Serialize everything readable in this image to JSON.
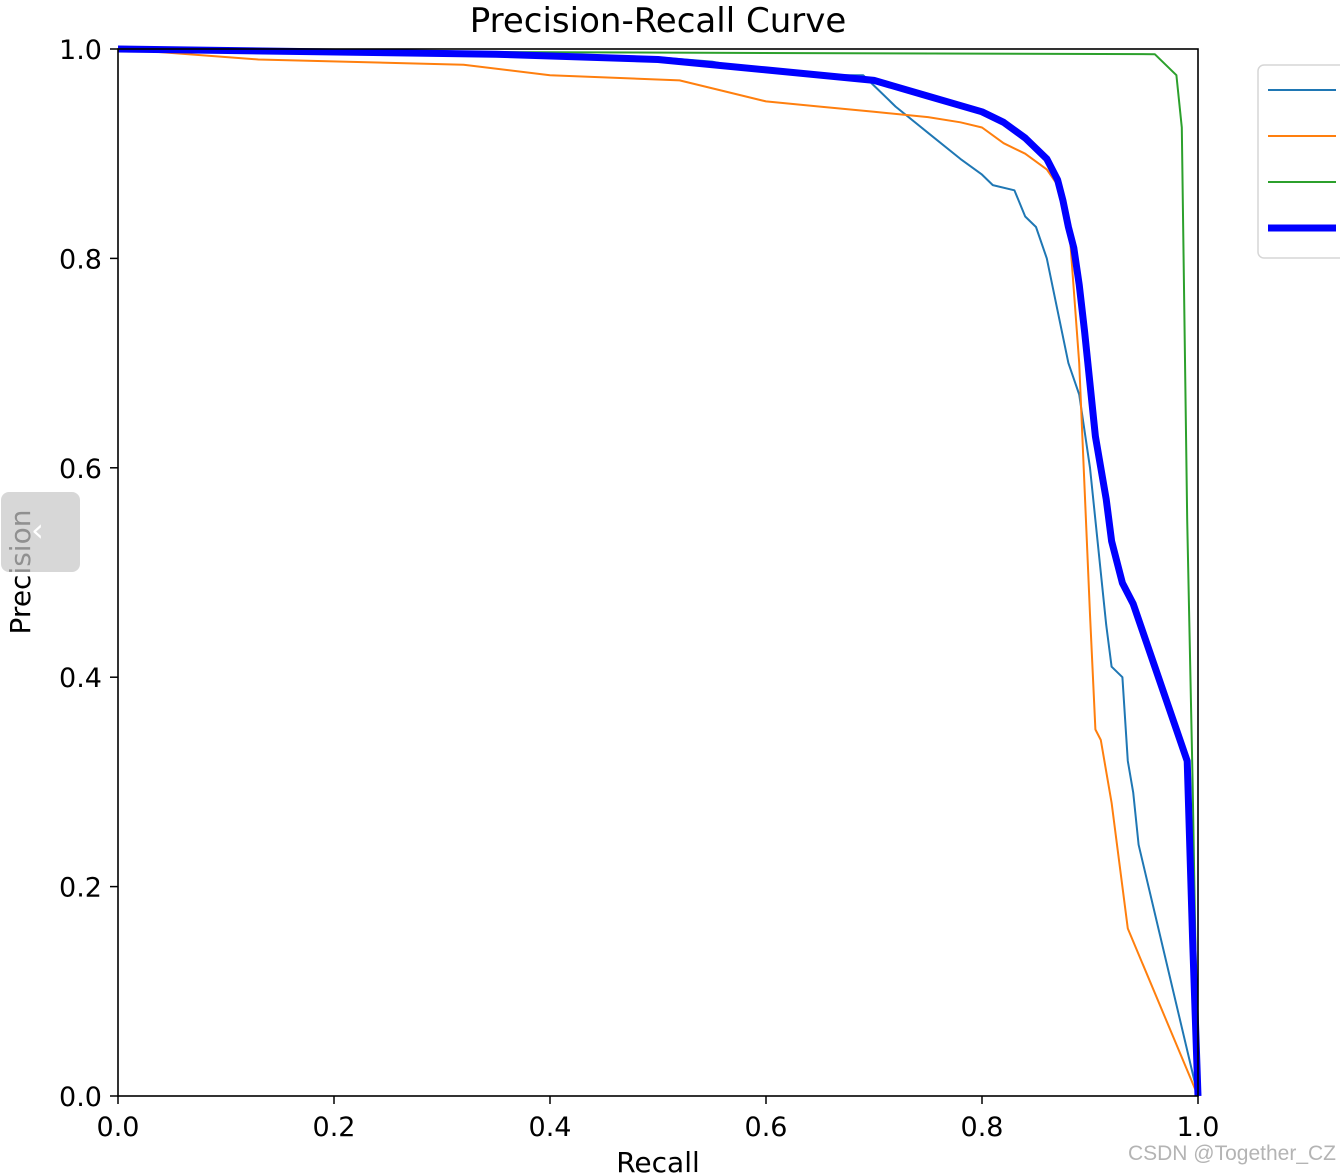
{
  "chart_data": {
    "type": "line",
    "title": "Precision-Recall Curve",
    "xlabel": "Recall",
    "ylabel": "Precision",
    "xlim": [
      0.0,
      1.0
    ],
    "ylim": [
      0.0,
      1.0
    ],
    "xticks": [
      "0.0",
      "0.2",
      "0.4",
      "0.6",
      "0.8",
      "1.0"
    ],
    "yticks": [
      "0.0",
      "0.2",
      "0.4",
      "0.6",
      "0.8",
      "1.0"
    ],
    "grid": false,
    "legend_position": "outside upper-right",
    "series": [
      {
        "name": "",
        "color": "#1f77b4",
        "width": "thin",
        "points": [
          [
            0.0,
            1.0
          ],
          [
            0.3,
            0.998
          ],
          [
            0.5,
            0.992
          ],
          [
            0.55,
            0.988
          ],
          [
            0.6,
            0.978
          ],
          [
            0.65,
            0.975
          ],
          [
            0.69,
            0.975
          ],
          [
            0.7,
            0.965
          ],
          [
            0.72,
            0.945
          ],
          [
            0.75,
            0.92
          ],
          [
            0.78,
            0.895
          ],
          [
            0.8,
            0.88
          ],
          [
            0.81,
            0.87
          ],
          [
            0.83,
            0.865
          ],
          [
            0.84,
            0.84
          ],
          [
            0.85,
            0.83
          ],
          [
            0.86,
            0.8
          ],
          [
            0.87,
            0.75
          ],
          [
            0.88,
            0.7
          ],
          [
            0.89,
            0.67
          ],
          [
            0.9,
            0.6
          ],
          [
            0.905,
            0.55
          ],
          [
            0.91,
            0.5
          ],
          [
            0.915,
            0.45
          ],
          [
            0.92,
            0.41
          ],
          [
            0.93,
            0.4
          ],
          [
            0.935,
            0.32
          ],
          [
            0.94,
            0.29
          ],
          [
            0.945,
            0.24
          ],
          [
            1.0,
            0.0
          ]
        ]
      },
      {
        "name": "",
        "color": "#ff7f0e",
        "width": "thin",
        "points": [
          [
            0.0,
            1.0
          ],
          [
            0.13,
            0.99
          ],
          [
            0.32,
            0.985
          ],
          [
            0.4,
            0.975
          ],
          [
            0.52,
            0.97
          ],
          [
            0.56,
            0.96
          ],
          [
            0.6,
            0.95
          ],
          [
            0.65,
            0.945
          ],
          [
            0.7,
            0.94
          ],
          [
            0.75,
            0.935
          ],
          [
            0.78,
            0.93
          ],
          [
            0.8,
            0.925
          ],
          [
            0.82,
            0.91
          ],
          [
            0.84,
            0.9
          ],
          [
            0.86,
            0.885
          ],
          [
            0.87,
            0.87
          ],
          [
            0.88,
            0.84
          ],
          [
            0.885,
            0.77
          ],
          [
            0.89,
            0.7
          ],
          [
            0.895,
            0.58
          ],
          [
            0.9,
            0.46
          ],
          [
            0.905,
            0.35
          ],
          [
            0.91,
            0.34
          ],
          [
            0.915,
            0.31
          ],
          [
            0.92,
            0.28
          ],
          [
            0.925,
            0.24
          ],
          [
            0.93,
            0.2
          ],
          [
            0.935,
            0.16
          ],
          [
            1.0,
            0.0
          ]
        ]
      },
      {
        "name": "",
        "color": "#2ca02c",
        "width": "thin",
        "points": [
          [
            0.0,
            1.0
          ],
          [
            0.35,
            0.997
          ],
          [
            0.96,
            0.995
          ],
          [
            0.97,
            0.985
          ],
          [
            0.98,
            0.975
          ],
          [
            0.985,
            0.925
          ],
          [
            0.99,
            0.55
          ],
          [
            0.995,
            0.3
          ],
          [
            1.0,
            0.0
          ]
        ]
      },
      {
        "name": "",
        "color": "#0000ff",
        "width": "thick",
        "points": [
          [
            0.0,
            1.0
          ],
          [
            0.35,
            0.995
          ],
          [
            0.5,
            0.99
          ],
          [
            0.6,
            0.98
          ],
          [
            0.7,
            0.97
          ],
          [
            0.75,
            0.955
          ],
          [
            0.8,
            0.94
          ],
          [
            0.82,
            0.93
          ],
          [
            0.84,
            0.915
          ],
          [
            0.86,
            0.895
          ],
          [
            0.87,
            0.875
          ],
          [
            0.875,
            0.855
          ],
          [
            0.88,
            0.83
          ],
          [
            0.885,
            0.81
          ],
          [
            0.89,
            0.775
          ],
          [
            0.895,
            0.73
          ],
          [
            0.9,
            0.68
          ],
          [
            0.905,
            0.63
          ],
          [
            0.91,
            0.6
          ],
          [
            0.915,
            0.57
          ],
          [
            0.92,
            0.53
          ],
          [
            0.93,
            0.49
          ],
          [
            0.94,
            0.47
          ],
          [
            0.95,
            0.44
          ],
          [
            0.96,
            0.41
          ],
          [
            0.97,
            0.38
          ],
          [
            0.98,
            0.35
          ],
          [
            0.99,
            0.32
          ],
          [
            0.995,
            0.15
          ],
          [
            1.0,
            0.0
          ]
        ]
      }
    ]
  },
  "watermark": "CSDN @Together_CZ",
  "nav": {
    "prev_icon": "‹"
  }
}
